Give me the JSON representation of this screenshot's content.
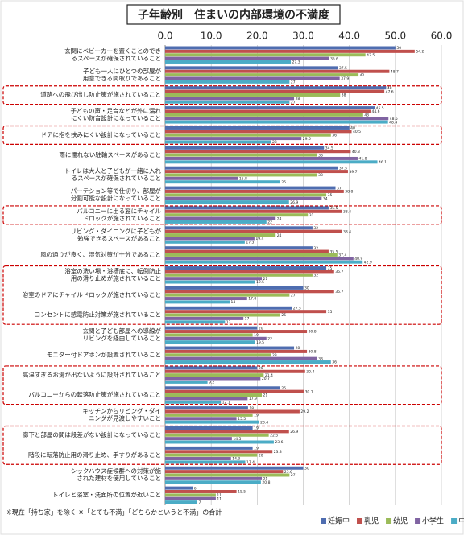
{
  "chart_data": {
    "type": "hbar",
    "title": "子年齢別　住まいの内部環境の不満度",
    "categories": [
      "玄関にベビーカーを置くことのできるスペースが確保されていること",
      "子ども一人にひとつの部屋が用意できる間取りであること",
      "道路への飛び出し防止策が施されていること",
      "子どもの声・足音などが外に漏れにくい防音設計になっていること",
      "ドアに指を挟みにくい設計になっていること",
      "雨に濡れない駐輪スペースがあること",
      "トイレは大人と子どもが一緒に入れるスペースが確保されていること",
      "パーテション等で仕切り、部屋が分割可能な設計になっていること",
      "バルコニーに出る窓にチャイルドロックが施されていること",
      "リビング・ダイニングに子どもが勉強できるスペースがあること",
      "風の通りが良く、湿気対策が十分であること",
      "浴室の洗い場・浴槽底に、転倒防止用の滑り止めが施されていること",
      "浴室のドアにチャイルドロックが施されていること",
      "コンセントに感電防止対策が施されていること",
      "玄関と子ども部屋への導線がリビングを経由していること",
      "モニター付ドアホンが設置されていること",
      "高温すぎるお湯が出ないように設計されていること",
      "バルコニーからの転落防止策が施されていること",
      "キッチンからリビング・ダイニングが見渡しやすいこと",
      "廊下と部屋の間は段差がない設計になっていること",
      "階段に転落防止用の滑り止め、手すりがあること",
      "シックハウス症候群への対策が施された建材を使用していること",
      "トイレと浴室・洗面所の位置が近いこと"
    ],
    "series": [
      {
        "name": "妊娠中",
        "color": "#4f6db0",
        "values": [
          50.0,
          37.5,
          48.0,
          45.5,
          40.0,
          34.5,
          37.5,
          37.0,
          35.5,
          32.0,
          32.0,
          35.0,
          30.0,
          27.5,
          20.0,
          28.0,
          20.0,
          25.0,
          18.0,
          19.0,
          19.0,
          30.0,
          6.0
        ]
      },
      {
        "name": "乳児",
        "color": "#c0504d",
        "values": [
          54.2,
          48.7,
          47.6,
          44.6,
          40.5,
          40.3,
          39.7,
          38.8,
          38.4,
          38.4,
          35.5,
          36.7,
          36.7,
          35.0,
          30.8,
          30.8,
          30.4,
          30.1,
          29.2,
          26.9,
          23.3,
          25.6,
          15.5
        ]
      },
      {
        "name": "幼児",
        "color": "#9bbb59",
        "values": [
          43.5,
          42.0,
          38.0,
          43.0,
          36.0,
          33.0,
          33.0,
          35.0,
          31.0,
          24.0,
          37.4,
          32.0,
          27.0,
          25.0,
          19.0,
          23.0,
          21.4,
          21.0,
          19.0,
          22.5,
          20.0,
          27.0,
          11.0
        ]
      },
      {
        "name": "小学生",
        "color": "#8064a2",
        "values": [
          35.6,
          37.9,
          28.0,
          48.5,
          29.6,
          41.8,
          15.8,
          34.0,
          24.0,
          19.4,
          40.9,
          21.0,
          17.8,
          17.0,
          22.0,
          33.0,
          20.7,
          17.9,
          15.5,
          14.5,
          14.3,
          21.0,
          11.0
        ]
      },
      {
        "name": "中学生以上",
        "color": "#4bacc6",
        "values": [
          27.3,
          27.0,
          27.0,
          48.4,
          23.0,
          46.1,
          25.0,
          26.9,
          22.0,
          17.3,
          42.9,
          19.5,
          14.0,
          13.0,
          19.5,
          36.0,
          9.2,
          12.1,
          20.4,
          23.6,
          17.4,
          20.8,
          7.0
        ]
      }
    ],
    "xlim": [
      0,
      60
    ],
    "xticks": [
      {
        "value": 0,
        "label": "0.0"
      },
      {
        "value": 10,
        "label": "10.0"
      },
      {
        "value": 20,
        "label": "20.0"
      },
      {
        "value": 30,
        "label": "30.0"
      },
      {
        "value": 40,
        "label": "40.0"
      },
      {
        "value": 50,
        "label": "50.0"
      },
      {
        "value": 60,
        "label": "60.0"
      }
    ],
    "grid": true,
    "legend": "bottom-right",
    "notes": "※現在「持ち家」を除く ※「とても不満」「どちらかというと不満」の合計"
  }
}
